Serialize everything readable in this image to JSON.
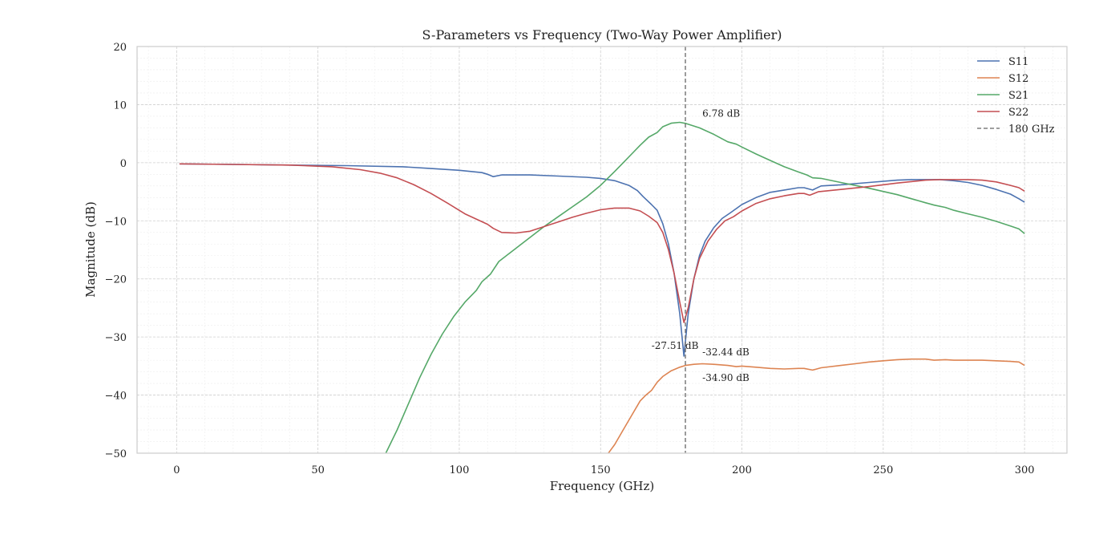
{
  "chart_data": {
    "type": "line",
    "title": "S-Parameters vs Frequency (Two-Way Power Amplifier)",
    "xlabel": "Frequency (GHz)",
    "ylabel": "Magnitude (dB)",
    "xlim": [
      -14,
      315
    ],
    "ylim": [
      -50,
      20
    ],
    "xticks": [
      0,
      50,
      100,
      150,
      200,
      250,
      300
    ],
    "yticks": [
      20,
      10,
      0,
      -10,
      -20,
      -30,
      -40,
      -50
    ],
    "xtick_labels": [
      "0",
      "50",
      "100",
      "150",
      "200",
      "250",
      "300"
    ],
    "ytick_labels": [
      "20",
      "10",
      "0",
      "−10",
      "−20",
      "−30",
      "−40",
      "−50"
    ],
    "grid": true,
    "legend_position": "top-right",
    "series": [
      {
        "name": "S11",
        "color": "#4c72b0",
        "points": [
          [
            1,
            -0.2
          ],
          [
            20,
            -0.3
          ],
          [
            40,
            -0.4
          ],
          [
            60,
            -0.5
          ],
          [
            80,
            -0.7
          ],
          [
            90,
            -1.0
          ],
          [
            100,
            -1.3
          ],
          [
            108,
            -1.7
          ],
          [
            110,
            -2.0
          ],
          [
            112,
            -2.4
          ],
          [
            115,
            -2.1
          ],
          [
            125,
            -2.1
          ],
          [
            135,
            -2.3
          ],
          [
            145,
            -2.5
          ],
          [
            150,
            -2.7
          ],
          [
            155,
            -3.1
          ],
          [
            160,
            -3.9
          ],
          [
            163,
            -4.8
          ],
          [
            165,
            -5.8
          ],
          [
            168,
            -7.2
          ],
          [
            170,
            -8.2
          ],
          [
            172,
            -10.5
          ],
          [
            174,
            -14
          ],
          [
            176,
            -19
          ],
          [
            178,
            -26
          ],
          [
            179.5,
            -33.3
          ],
          [
            181,
            -26
          ],
          [
            183,
            -20
          ],
          [
            185,
            -16
          ],
          [
            187,
            -13.5
          ],
          [
            190,
            -11.2
          ],
          [
            193,
            -9.6
          ],
          [
            196,
            -8.6
          ],
          [
            200,
            -7.2
          ],
          [
            205,
            -6
          ],
          [
            210,
            -5.1
          ],
          [
            215,
            -4.7
          ],
          [
            220,
            -4.3
          ],
          [
            222,
            -4.3
          ],
          [
            225,
            -4.7
          ],
          [
            228,
            -4
          ],
          [
            235,
            -3.8
          ],
          [
            245,
            -3.4
          ],
          [
            255,
            -3.0
          ],
          [
            260,
            -2.9
          ],
          [
            265,
            -2.9
          ],
          [
            270,
            -2.9
          ],
          [
            275,
            -3.1
          ],
          [
            280,
            -3.4
          ],
          [
            285,
            -3.9
          ],
          [
            290,
            -4.6
          ],
          [
            295,
            -5.4
          ],
          [
            298,
            -6.2
          ],
          [
            300,
            -6.8
          ]
        ]
      },
      {
        "name": "S12",
        "color": "#dd8452",
        "points": [
          [
            152,
            -50.5
          ],
          [
            155,
            -48.5
          ],
          [
            158,
            -46
          ],
          [
            161,
            -43.5
          ],
          [
            164,
            -41
          ],
          [
            166,
            -40
          ],
          [
            168,
            -39.2
          ],
          [
            170,
            -37.8
          ],
          [
            172,
            -36.8
          ],
          [
            175,
            -35.8
          ],
          [
            178,
            -35.2
          ],
          [
            180,
            -34.9
          ],
          [
            183,
            -34.7
          ],
          [
            186,
            -34.6
          ],
          [
            190,
            -34.7
          ],
          [
            195,
            -34.9
          ],
          [
            198,
            -35.1
          ],
          [
            200,
            -35.0
          ],
          [
            205,
            -35.2
          ],
          [
            210,
            -35.4
          ],
          [
            215,
            -35.5
          ],
          [
            220,
            -35.4
          ],
          [
            222,
            -35.4
          ],
          [
            225,
            -35.7
          ],
          [
            228,
            -35.3
          ],
          [
            235,
            -34.9
          ],
          [
            240,
            -34.6
          ],
          [
            245,
            -34.3
          ],
          [
            250,
            -34.1
          ],
          [
            255,
            -33.9
          ],
          [
            260,
            -33.8
          ],
          [
            265,
            -33.8
          ],
          [
            268,
            -34.0
          ],
          [
            272,
            -33.9
          ],
          [
            275,
            -34.0
          ],
          [
            280,
            -34.0
          ],
          [
            285,
            -34.0
          ],
          [
            290,
            -34.1
          ],
          [
            295,
            -34.2
          ],
          [
            298,
            -34.3
          ],
          [
            300,
            -34.9
          ]
        ]
      },
      {
        "name": "S21",
        "color": "#55a868",
        "points": [
          [
            74,
            -50
          ],
          [
            78,
            -46
          ],
          [
            82,
            -41.5
          ],
          [
            86,
            -37
          ],
          [
            90,
            -33
          ],
          [
            94,
            -29.5
          ],
          [
            98,
            -26.5
          ],
          [
            102,
            -24
          ],
          [
            106,
            -22
          ],
          [
            108,
            -20.5
          ],
          [
            111,
            -19.2
          ],
          [
            114,
            -17
          ],
          [
            118,
            -15.5
          ],
          [
            122,
            -14
          ],
          [
            126,
            -12.5
          ],
          [
            130,
            -11
          ],
          [
            135,
            -9.3
          ],
          [
            140,
            -7.6
          ],
          [
            145,
            -5.9
          ],
          [
            150,
            -3.9
          ],
          [
            155,
            -1.5
          ],
          [
            158,
            0
          ],
          [
            161,
            1.5
          ],
          [
            164,
            3
          ],
          [
            167,
            4.4
          ],
          [
            170,
            5.2
          ],
          [
            172,
            6.2
          ],
          [
            175,
            6.8
          ],
          [
            178,
            6.95
          ],
          [
            180,
            6.78
          ],
          [
            185,
            6
          ],
          [
            190,
            4.9
          ],
          [
            195,
            3.6
          ],
          [
            198,
            3.2
          ],
          [
            200,
            2.7
          ],
          [
            205,
            1.5
          ],
          [
            210,
            0.4
          ],
          [
            215,
            -0.7
          ],
          [
            220,
            -1.6
          ],
          [
            223,
            -2.1
          ],
          [
            225,
            -2.6
          ],
          [
            228,
            -2.7
          ],
          [
            235,
            -3.4
          ],
          [
            245,
            -4.4
          ],
          [
            255,
            -5.5
          ],
          [
            260,
            -6.2
          ],
          [
            265,
            -6.9
          ],
          [
            268,
            -7.3
          ],
          [
            272,
            -7.7
          ],
          [
            275,
            -8.2
          ],
          [
            280,
            -8.8
          ],
          [
            285,
            -9.4
          ],
          [
            290,
            -10.1
          ],
          [
            295,
            -10.9
          ],
          [
            298,
            -11.4
          ],
          [
            300,
            -12.2
          ]
        ]
      },
      {
        "name": "S22",
        "color": "#c44e52",
        "points": [
          [
            1,
            -0.2
          ],
          [
            20,
            -0.3
          ],
          [
            40,
            -0.4
          ],
          [
            55,
            -0.7
          ],
          [
            65,
            -1.2
          ],
          [
            72,
            -1.8
          ],
          [
            78,
            -2.6
          ],
          [
            84,
            -3.8
          ],
          [
            90,
            -5.3
          ],
          [
            96,
            -7
          ],
          [
            102,
            -8.8
          ],
          [
            106,
            -9.7
          ],
          [
            110,
            -10.6
          ],
          [
            112,
            -11.3
          ],
          [
            115,
            -12
          ],
          [
            120,
            -12.1
          ],
          [
            125,
            -11.8
          ],
          [
            130,
            -11
          ],
          [
            135,
            -10.2
          ],
          [
            140,
            -9.4
          ],
          [
            145,
            -8.7
          ],
          [
            150,
            -8.1
          ],
          [
            155,
            -7.8
          ],
          [
            160,
            -7.8
          ],
          [
            164,
            -8.3
          ],
          [
            167,
            -9.2
          ],
          [
            170,
            -10.3
          ],
          [
            172,
            -12
          ],
          [
            174,
            -15
          ],
          [
            176,
            -19
          ],
          [
            178,
            -24
          ],
          [
            179.5,
            -27.51
          ],
          [
            181,
            -25
          ],
          [
            183,
            -20
          ],
          [
            185,
            -16.5
          ],
          [
            188,
            -13.5
          ],
          [
            191,
            -11.5
          ],
          [
            194,
            -10
          ],
          [
            197,
            -9.3
          ],
          [
            200,
            -8.3
          ],
          [
            205,
            -7
          ],
          [
            210,
            -6.2
          ],
          [
            215,
            -5.7
          ],
          [
            220,
            -5.3
          ],
          [
            222,
            -5.3
          ],
          [
            224,
            -5.6
          ],
          [
            227,
            -5.0
          ],
          [
            235,
            -4.6
          ],
          [
            245,
            -4.1
          ],
          [
            255,
            -3.5
          ],
          [
            265,
            -3.0
          ],
          [
            270,
            -2.9
          ],
          [
            275,
            -2.9
          ],
          [
            280,
            -2.9
          ],
          [
            285,
            -3.0
          ],
          [
            290,
            -3.3
          ],
          [
            295,
            -3.9
          ],
          [
            298,
            -4.3
          ],
          [
            300,
            -4.9
          ]
        ]
      }
    ],
    "vline": {
      "x": 180,
      "label": "180 GHz",
      "color": "#666666"
    },
    "annotations": [
      {
        "text": "6.78 dB",
        "x": 186,
        "y": 8.5
      },
      {
        "text": "-27.51 dB",
        "x": 168,
        "y": -31.5
      },
      {
        "text": "-32.44 dB",
        "x": 186,
        "y": -32.6
      },
      {
        "text": "-34.90 dB",
        "x": 186,
        "y": -37
      }
    ]
  }
}
